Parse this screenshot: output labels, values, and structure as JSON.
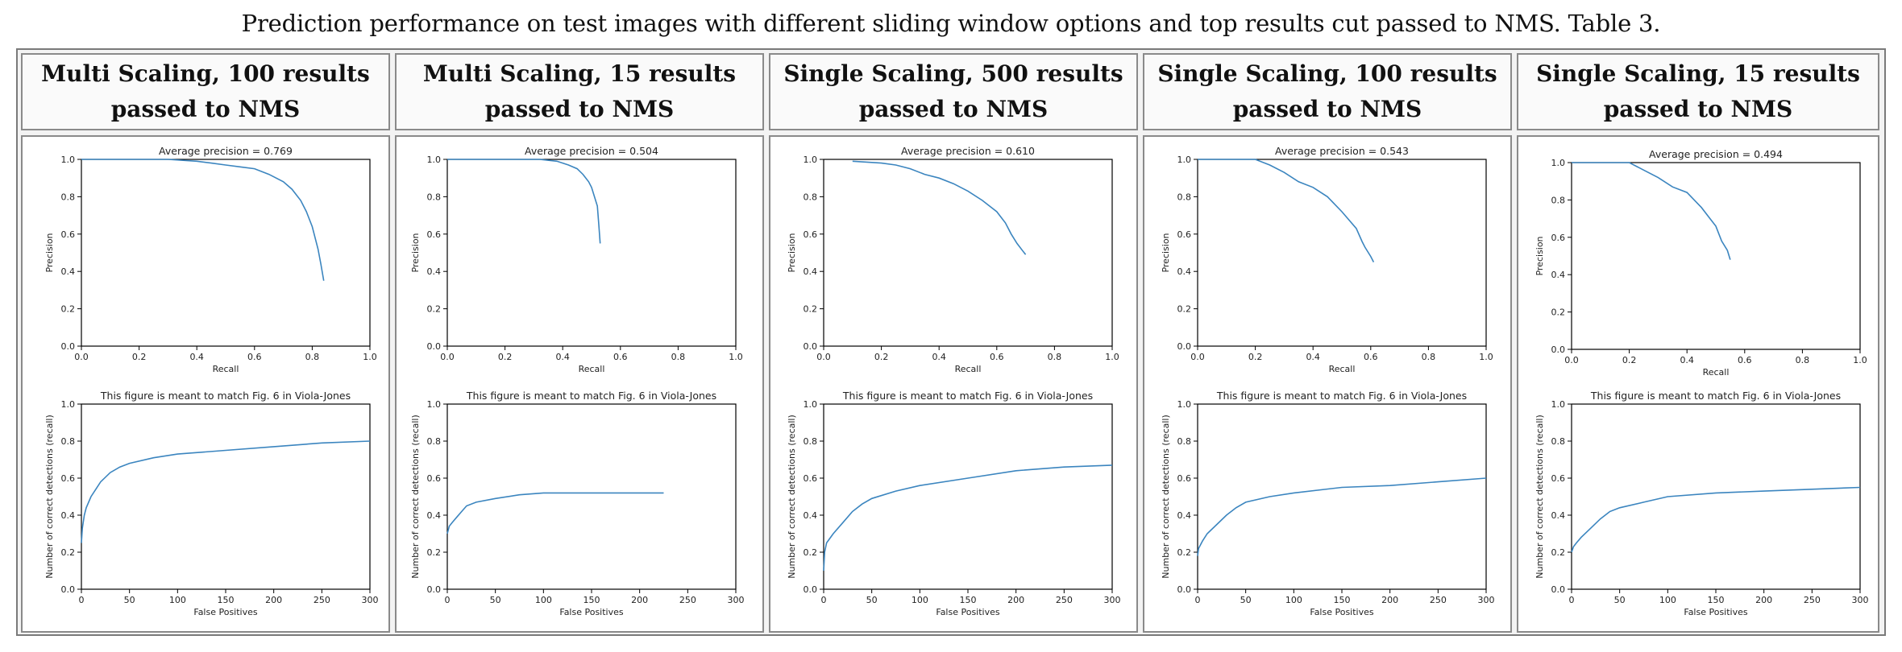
{
  "page": {
    "caption": "Prediction performance on test images with different sliding window options and top results cut passed to NMS. Table 3."
  },
  "style": {
    "line_color": "#3b85bf",
    "axis_color": "#000000"
  },
  "columns": [
    {
      "header": "Multi Scaling, 100 results passed to NMS"
    },
    {
      "header": "Multi Scaling, 15 results passed to NMS"
    },
    {
      "header": "Single Scaling, 500 results passed to NMS"
    },
    {
      "header": "Single Scaling, 100 results passed to NMS"
    },
    {
      "header": "Single Scaling, 15 results passed to NMS"
    }
  ],
  "chart_data": [
    {
      "type": "line",
      "title": "Average precision = 0.769",
      "xlabel": "Recall",
      "ylabel": "Precision",
      "xlim": [
        0,
        1
      ],
      "ylim": [
        0,
        1
      ],
      "xticks": [
        "0.0",
        "0.2",
        "0.4",
        "0.6",
        "0.8",
        "1.0"
      ],
      "yticks": [
        "0.0",
        "0.2",
        "0.4",
        "0.6",
        "0.8",
        "1.0"
      ],
      "series": [
        {
          "x": [
            0.0,
            0.3,
            0.4,
            0.45,
            0.5,
            0.55,
            0.6,
            0.65,
            0.7,
            0.73,
            0.76,
            0.78,
            0.8,
            0.82,
            0.83,
            0.84
          ],
          "y": [
            1.0,
            1.0,
            0.99,
            0.98,
            0.97,
            0.96,
            0.95,
            0.92,
            0.88,
            0.84,
            0.78,
            0.72,
            0.64,
            0.52,
            0.44,
            0.35
          ]
        }
      ]
    },
    {
      "type": "line",
      "title": "Average precision = 0.504",
      "xlabel": "Recall",
      "ylabel": "Precision",
      "xlim": [
        0,
        1
      ],
      "ylim": [
        0,
        1
      ],
      "xticks": [
        "0.0",
        "0.2",
        "0.4",
        "0.6",
        "0.8",
        "1.0"
      ],
      "yticks": [
        "0.0",
        "0.2",
        "0.4",
        "0.6",
        "0.8",
        "1.0"
      ],
      "series": [
        {
          "x": [
            0.0,
            0.32,
            0.38,
            0.42,
            0.45,
            0.47,
            0.49,
            0.5,
            0.51,
            0.52,
            0.525,
            0.53
          ],
          "y": [
            1.0,
            1.0,
            0.99,
            0.97,
            0.95,
            0.92,
            0.88,
            0.85,
            0.8,
            0.75,
            0.65,
            0.55
          ]
        }
      ]
    },
    {
      "type": "line",
      "title": "Average precision = 0.610",
      "xlabel": "Recall",
      "ylabel": "Precision",
      "xlim": [
        0,
        1
      ],
      "ylim": [
        0,
        1
      ],
      "xticks": [
        "0.0",
        "0.2",
        "0.4",
        "0.6",
        "0.8",
        "1.0"
      ],
      "yticks": [
        "0.0",
        "0.2",
        "0.4",
        "0.6",
        "0.8",
        "1.0"
      ],
      "series": [
        {
          "x": [
            0.1,
            0.2,
            0.25,
            0.3,
            0.35,
            0.4,
            0.45,
            0.5,
            0.55,
            0.6,
            0.63,
            0.65,
            0.67,
            0.69,
            0.7
          ],
          "y": [
            0.99,
            0.98,
            0.97,
            0.95,
            0.92,
            0.9,
            0.87,
            0.83,
            0.78,
            0.72,
            0.66,
            0.6,
            0.55,
            0.51,
            0.49
          ]
        }
      ]
    },
    {
      "type": "line",
      "title": "Average precision = 0.543",
      "xlabel": "Recall",
      "ylabel": "Precision",
      "xlim": [
        0,
        1
      ],
      "ylim": [
        0,
        1
      ],
      "xticks": [
        "0.0",
        "0.2",
        "0.4",
        "0.6",
        "0.8",
        "1.0"
      ],
      "yticks": [
        "0.0",
        "0.2",
        "0.4",
        "0.6",
        "0.8",
        "1.0"
      ],
      "series": [
        {
          "x": [
            0.0,
            0.2,
            0.25,
            0.3,
            0.35,
            0.4,
            0.45,
            0.5,
            0.55,
            0.57,
            0.58,
            0.6,
            0.61
          ],
          "y": [
            1.0,
            1.0,
            0.97,
            0.93,
            0.88,
            0.85,
            0.8,
            0.72,
            0.63,
            0.56,
            0.53,
            0.48,
            0.45
          ]
        }
      ]
    },
    {
      "type": "line",
      "title": "Average precision = 0.494",
      "xlabel": "Recall",
      "ylabel": "Precision",
      "xlim": [
        0,
        1
      ],
      "ylim": [
        0,
        1
      ],
      "xticks": [
        "0.0",
        "0.2",
        "0.4",
        "0.6",
        "0.8",
        "1.0"
      ],
      "yticks": [
        "0.0",
        "0.2",
        "0.4",
        "0.6",
        "0.8",
        "1.0"
      ],
      "series": [
        {
          "x": [
            0.0,
            0.2,
            0.25,
            0.3,
            0.35,
            0.4,
            0.45,
            0.48,
            0.5,
            0.52,
            0.54,
            0.55
          ],
          "y": [
            1.0,
            1.0,
            0.96,
            0.92,
            0.87,
            0.84,
            0.76,
            0.7,
            0.66,
            0.58,
            0.53,
            0.48
          ]
        }
      ]
    },
    {
      "type": "line",
      "title": "This figure is meant to match Fig. 6 in Viola-Jones",
      "xlabel": "False Positives",
      "ylabel": "Number of correct detections (recall)",
      "xlim": [
        0,
        300
      ],
      "ylim": [
        0,
        1
      ],
      "xticks": [
        "0",
        "50",
        "100",
        "150",
        "200",
        "250",
        "300"
      ],
      "yticks": [
        "0.0",
        "0.2",
        "0.4",
        "0.6",
        "0.8",
        "1.0"
      ],
      "series": [
        {
          "x": [
            0,
            1,
            3,
            5,
            10,
            15,
            20,
            30,
            40,
            50,
            75,
            100,
            150,
            200,
            250,
            300
          ],
          "y": [
            0.25,
            0.33,
            0.4,
            0.44,
            0.5,
            0.54,
            0.58,
            0.63,
            0.66,
            0.68,
            0.71,
            0.73,
            0.75,
            0.77,
            0.79,
            0.8
          ]
        }
      ]
    },
    {
      "type": "line",
      "title": "This figure is meant to match Fig. 6 in Viola-Jones",
      "xlabel": "False Positives",
      "ylabel": "Number of correct detections (recall)",
      "xlim": [
        0,
        300
      ],
      "ylim": [
        0,
        1
      ],
      "xticks": [
        "0",
        "50",
        "100",
        "150",
        "200",
        "250",
        "300"
      ],
      "yticks": [
        "0.0",
        "0.2",
        "0.4",
        "0.6",
        "0.8",
        "1.0"
      ],
      "series": [
        {
          "x": [
            0,
            2,
            5,
            10,
            15,
            20,
            30,
            50,
            75,
            100,
            150,
            200,
            225
          ],
          "y": [
            0.3,
            0.34,
            0.36,
            0.39,
            0.42,
            0.45,
            0.47,
            0.49,
            0.51,
            0.52,
            0.52,
            0.52,
            0.52
          ]
        }
      ]
    },
    {
      "type": "line",
      "title": "This figure is meant to match Fig. 6 in Viola-Jones",
      "xlabel": "False Positives",
      "ylabel": "Number of correct detections (recall)",
      "xlim": [
        0,
        300
      ],
      "ylim": [
        0,
        1
      ],
      "xticks": [
        "0",
        "50",
        "100",
        "150",
        "200",
        "250",
        "300"
      ],
      "yticks": [
        "0.0",
        "0.2",
        "0.4",
        "0.6",
        "0.8",
        "1.0"
      ],
      "series": [
        {
          "x": [
            0,
            1,
            3,
            10,
            20,
            30,
            40,
            50,
            75,
            100,
            150,
            200,
            250,
            300
          ],
          "y": [
            0.1,
            0.2,
            0.25,
            0.3,
            0.36,
            0.42,
            0.46,
            0.49,
            0.53,
            0.56,
            0.6,
            0.64,
            0.66,
            0.67
          ]
        }
      ]
    },
    {
      "type": "line",
      "title": "This figure is meant to match Fig. 6 in Viola-Jones",
      "xlabel": "False Positives",
      "ylabel": "Number of correct detections (recall)",
      "xlim": [
        0,
        300
      ],
      "ylim": [
        0,
        1
      ],
      "xticks": [
        "0",
        "50",
        "100",
        "150",
        "200",
        "250",
        "300"
      ],
      "yticks": [
        "0.0",
        "0.2",
        "0.4",
        "0.6",
        "0.8",
        "1.0"
      ],
      "series": [
        {
          "x": [
            0,
            1,
            5,
            10,
            20,
            30,
            40,
            50,
            75,
            100,
            150,
            200,
            250,
            300
          ],
          "y": [
            0.18,
            0.22,
            0.26,
            0.3,
            0.35,
            0.4,
            0.44,
            0.47,
            0.5,
            0.52,
            0.55,
            0.56,
            0.58,
            0.6
          ]
        }
      ]
    },
    {
      "type": "line",
      "title": "This figure is meant to match Fig. 6 in Viola-Jones",
      "xlabel": "False Positives",
      "ylabel": "Number of correct detections (recall)",
      "xlim": [
        0,
        300
      ],
      "ylim": [
        0,
        1
      ],
      "xticks": [
        "0",
        "50",
        "100",
        "150",
        "200",
        "250",
        "300"
      ],
      "yticks": [
        "0.0",
        "0.2",
        "0.4",
        "0.6",
        "0.8",
        "1.0"
      ],
      "series": [
        {
          "x": [
            0,
            2,
            5,
            10,
            20,
            30,
            40,
            50,
            75,
            100,
            150,
            200,
            250,
            300
          ],
          "y": [
            0.2,
            0.23,
            0.25,
            0.28,
            0.33,
            0.38,
            0.42,
            0.44,
            0.47,
            0.5,
            0.52,
            0.53,
            0.54,
            0.55
          ]
        }
      ]
    }
  ]
}
